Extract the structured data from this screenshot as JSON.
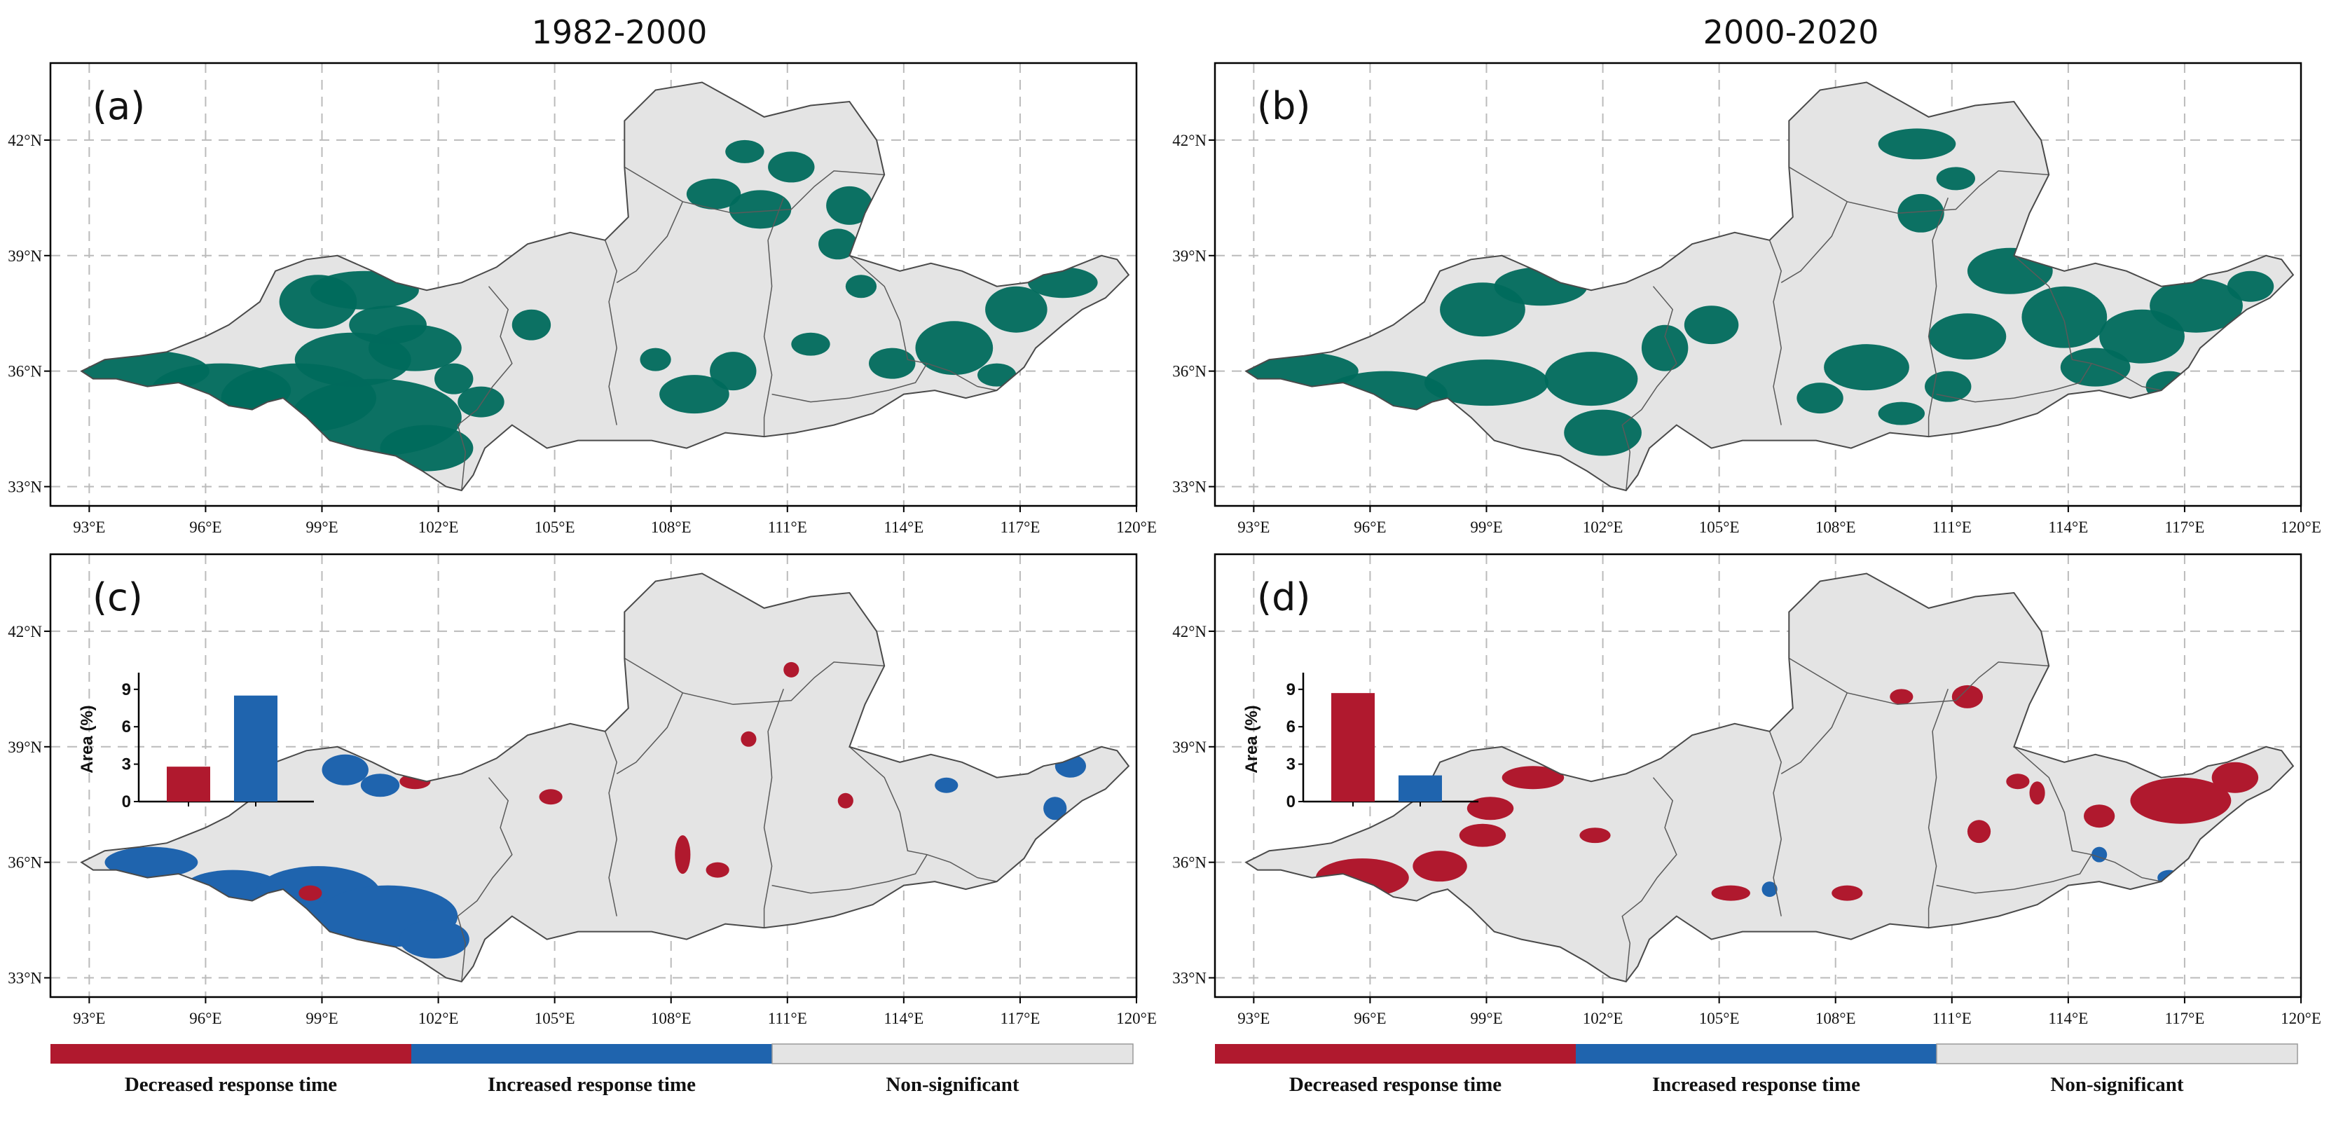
{
  "columns": [
    {
      "title": "1982-2000"
    },
    {
      "title": "2000-2020"
    }
  ],
  "panels": [
    {
      "id": "a",
      "label": "(a)",
      "kind": "significance",
      "period": "1982-2000"
    },
    {
      "id": "b",
      "label": "(b)",
      "kind": "significance",
      "period": "2000-2020"
    },
    {
      "id": "c",
      "label": "(c)",
      "kind": "trend",
      "period": "1982-2000",
      "inset": {
        "ylabel": "Area (%)",
        "yticks": [
          "0",
          "3",
          "6",
          "9"
        ],
        "ylim": [
          0,
          10
        ],
        "bars": [
          {
            "category": "Decreased response time",
            "value": 2.8
          },
          {
            "category": "Increased response time",
            "value": 8.5
          }
        ]
      }
    },
    {
      "id": "d",
      "label": "(d)",
      "kind": "trend",
      "period": "2000-2020",
      "inset": {
        "ylabel": "Area (%)",
        "yticks": [
          "0",
          "3",
          "6",
          "9"
        ],
        "ylim": [
          0,
          10
        ],
        "bars": [
          {
            "category": "Decreased response time",
            "value": 8.7
          },
          {
            "category": "Increased response time",
            "value": 2.1
          }
        ]
      }
    }
  ],
  "axes": {
    "lon_range": [
      92,
      120
    ],
    "lat_range": [
      32.5,
      44
    ],
    "lon_ticks": [
      {
        "value": 93,
        "label": "93°E"
      },
      {
        "value": 96,
        "label": "96°E"
      },
      {
        "value": 99,
        "label": "99°E"
      },
      {
        "value": 102,
        "label": "102°E"
      },
      {
        "value": 105,
        "label": "105°E"
      },
      {
        "value": 108,
        "label": "108°E"
      },
      {
        "value": 111,
        "label": "111°E"
      },
      {
        "value": 114,
        "label": "114°E"
      },
      {
        "value": 117,
        "label": "117°E"
      },
      {
        "value": 120,
        "label": "120°E"
      }
    ],
    "lat_ticks": [
      {
        "value": 33,
        "label": "33°N"
      },
      {
        "value": 36,
        "label": "36°N"
      },
      {
        "value": 39,
        "label": "39°N"
      },
      {
        "value": 42,
        "label": "42°N"
      }
    ]
  },
  "legend": [
    {
      "label": "Decreased response time",
      "color": "#B0192E"
    },
    {
      "label": "Increased response time",
      "color": "#1F64AE"
    },
    {
      "label": "Non-significant",
      "color": "#E4E4E4"
    }
  ],
  "colors": {
    "region_fill": "#E4E4E4",
    "significant": "#006A5C",
    "decreased": "#B0192E",
    "increased": "#1F64AE",
    "grid": "#BBBBBB",
    "border": "#4A4A4A"
  },
  "region_outline": [
    [
      92.8,
      36.0
    ],
    [
      93.4,
      36.3
    ],
    [
      94.3,
      36.4
    ],
    [
      95.0,
      36.5
    ],
    [
      96.0,
      36.9
    ],
    [
      96.6,
      37.2
    ],
    [
      97.4,
      37.8
    ],
    [
      97.8,
      38.6
    ],
    [
      98.6,
      38.9
    ],
    [
      99.4,
      39.0
    ],
    [
      100.3,
      38.6
    ],
    [
      100.9,
      38.3
    ],
    [
      101.7,
      38.1
    ],
    [
      102.6,
      38.3
    ],
    [
      103.5,
      38.7
    ],
    [
      104.3,
      39.3
    ],
    [
      105.4,
      39.6
    ],
    [
      106.3,
      39.4
    ],
    [
      106.9,
      40.0
    ],
    [
      106.8,
      41.3
    ],
    [
      106.8,
      42.5
    ],
    [
      107.6,
      43.3
    ],
    [
      108.8,
      43.5
    ],
    [
      109.7,
      43.0
    ],
    [
      110.4,
      42.6
    ],
    [
      111.6,
      42.9
    ],
    [
      112.6,
      43.0
    ],
    [
      113.3,
      42.0
    ],
    [
      113.5,
      41.1
    ],
    [
      113.0,
      40.1
    ],
    [
      112.6,
      39.0
    ],
    [
      113.9,
      38.6
    ],
    [
      114.7,
      38.8
    ],
    [
      115.5,
      38.6
    ],
    [
      116.4,
      38.2
    ],
    [
      117.2,
      38.3
    ],
    [
      117.6,
      38.5
    ],
    [
      118.1,
      38.6
    ],
    [
      118.6,
      38.8
    ],
    [
      119.1,
      39.0
    ],
    [
      119.5,
      38.9
    ],
    [
      119.8,
      38.5
    ],
    [
      119.2,
      37.9
    ],
    [
      118.6,
      37.6
    ],
    [
      118.1,
      37.2
    ],
    [
      117.4,
      36.6
    ],
    [
      117.1,
      36.1
    ],
    [
      116.4,
      35.5
    ],
    [
      115.6,
      35.3
    ],
    [
      114.8,
      35.5
    ],
    [
      114.0,
      35.4
    ],
    [
      113.2,
      34.9
    ],
    [
      112.2,
      34.6
    ],
    [
      111.2,
      34.4
    ],
    [
      110.4,
      34.3
    ],
    [
      109.4,
      34.4
    ],
    [
      108.4,
      34.0
    ],
    [
      107.5,
      34.2
    ],
    [
      106.6,
      34.2
    ],
    [
      105.6,
      34.2
    ],
    [
      104.8,
      34.0
    ],
    [
      103.9,
      34.6
    ],
    [
      103.2,
      34.0
    ],
    [
      102.9,
      33.3
    ],
    [
      102.6,
      32.9
    ],
    [
      102.2,
      33.0
    ],
    [
      101.6,
      33.4
    ],
    [
      100.9,
      33.8
    ],
    [
      99.9,
      34.0
    ],
    [
      99.2,
      34.2
    ],
    [
      98.6,
      34.8
    ],
    [
      98.0,
      35.3
    ],
    [
      97.6,
      35.2
    ],
    [
      97.2,
      35.0
    ],
    [
      96.6,
      35.1
    ],
    [
      96.1,
      35.4
    ],
    [
      95.3,
      35.7
    ],
    [
      94.5,
      35.6
    ],
    [
      93.7,
      35.8
    ],
    [
      93.1,
      35.8
    ],
    [
      92.8,
      36.0
    ]
  ],
  "province_borders": [
    [
      [
        103.3,
        38.2
      ],
      [
        103.8,
        37.6
      ],
      [
        103.6,
        36.9
      ],
      [
        103.9,
        36.2
      ],
      [
        103.4,
        35.6
      ],
      [
        103.0,
        35.0
      ],
      [
        102.5,
        34.6
      ],
      [
        102.7,
        33.9
      ],
      [
        102.6,
        32.9
      ]
    ],
    [
      [
        106.3,
        39.4
      ],
      [
        106.6,
        38.6
      ],
      [
        106.4,
        37.8
      ],
      [
        106.6,
        36.6
      ],
      [
        106.4,
        35.6
      ],
      [
        106.6,
        34.6
      ]
    ],
    [
      [
        106.8,
        41.3
      ],
      [
        108.3,
        40.4
      ],
      [
        109.6,
        40.1
      ],
      [
        111.1,
        40.2
      ],
      [
        111.7,
        40.8
      ],
      [
        112.2,
        41.2
      ],
      [
        113.5,
        41.1
      ]
    ],
    [
      [
        108.3,
        40.4
      ],
      [
        107.9,
        39.5
      ],
      [
        107.1,
        38.6
      ],
      [
        106.6,
        38.3
      ]
    ],
    [
      [
        110.9,
        40.5
      ],
      [
        110.5,
        39.4
      ],
      [
        110.6,
        38.2
      ],
      [
        110.4,
        36.9
      ],
      [
        110.6,
        35.9
      ],
      [
        110.4,
        34.8
      ],
      [
        110.4,
        34.3
      ]
    ],
    [
      [
        110.6,
        35.4
      ],
      [
        111.6,
        35.2
      ],
      [
        112.6,
        35.3
      ],
      [
        113.6,
        35.5
      ],
      [
        114.3,
        35.7
      ],
      [
        114.6,
        36.2
      ]
    ],
    [
      [
        112.6,
        39.0
      ],
      [
        113.5,
        38.2
      ],
      [
        113.9,
        37.3
      ],
      [
        114.1,
        36.3
      ],
      [
        114.6,
        36.2
      ],
      [
        115.2,
        36.0
      ],
      [
        115.9,
        35.6
      ],
      [
        116.4,
        35.5
      ]
    ],
    [
      [
        114.0,
        35.4
      ],
      [
        113.6,
        34.8
      ],
      [
        113.9,
        34.4
      ]
    ]
  ],
  "patches": {
    "a": [
      [
        94.3,
        36.0,
        1.8,
        0.55
      ],
      [
        96.4,
        35.5,
        1.8,
        0.7
      ],
      [
        98.4,
        35.3,
        2.0,
        0.9
      ],
      [
        100.4,
        34.8,
        2.2,
        1.0
      ],
      [
        101.7,
        34.0,
        1.2,
        0.6
      ],
      [
        99.8,
        36.3,
        1.5,
        0.7
      ],
      [
        101.4,
        36.6,
        1.2,
        0.6
      ],
      [
        98.9,
        37.8,
        1.0,
        0.7
      ],
      [
        100.1,
        38.1,
        1.4,
        0.5
      ],
      [
        100.7,
        37.2,
        1.0,
        0.5
      ],
      [
        103.1,
        35.2,
        0.6,
        0.4
      ],
      [
        102.4,
        35.8,
        0.5,
        0.4
      ],
      [
        104.4,
        37.2,
        0.5,
        0.4
      ],
      [
        108.6,
        35.4,
        0.9,
        0.5
      ],
      [
        109.6,
        36.0,
        0.6,
        0.5
      ],
      [
        107.6,
        36.3,
        0.4,
        0.3
      ],
      [
        109.1,
        40.6,
        0.7,
        0.4
      ],
      [
        110.3,
        40.2,
        0.8,
        0.5
      ],
      [
        111.1,
        41.3,
        0.6,
        0.4
      ],
      [
        109.9,
        41.7,
        0.5,
        0.3
      ],
      [
        112.6,
        40.3,
        0.6,
        0.5
      ],
      [
        112.3,
        39.3,
        0.5,
        0.4
      ],
      [
        111.6,
        36.7,
        0.5,
        0.3
      ],
      [
        112.9,
        38.2,
        0.4,
        0.3
      ],
      [
        113.7,
        36.2,
        0.6,
        0.4
      ],
      [
        115.3,
        36.6,
        1.0,
        0.7
      ],
      [
        116.9,
        37.6,
        0.8,
        0.6
      ],
      [
        118.1,
        38.3,
        0.9,
        0.4
      ],
      [
        116.4,
        35.9,
        0.5,
        0.3
      ]
    ],
    "b": [
      [
        94.1,
        36.0,
        1.6,
        0.5
      ],
      [
        96.4,
        35.4,
        1.6,
        0.6
      ],
      [
        99.0,
        35.7,
        1.6,
        0.6
      ],
      [
        101.7,
        35.8,
        1.2,
        0.7
      ],
      [
        98.9,
        37.6,
        1.1,
        0.7
      ],
      [
        100.4,
        38.2,
        1.2,
        0.5
      ],
      [
        103.6,
        36.6,
        0.6,
        0.6
      ],
      [
        104.8,
        37.2,
        0.7,
        0.5
      ],
      [
        102.0,
        34.4,
        1.0,
        0.6
      ],
      [
        108.8,
        36.1,
        1.1,
        0.6
      ],
      [
        110.2,
        40.1,
        0.6,
        0.5
      ],
      [
        110.1,
        41.9,
        1.0,
        0.4
      ],
      [
        111.1,
        41.0,
        0.5,
        0.3
      ],
      [
        112.5,
        38.6,
        1.1,
        0.6
      ],
      [
        111.4,
        36.9,
        1.0,
        0.6
      ],
      [
        113.9,
        37.4,
        1.1,
        0.8
      ],
      [
        114.7,
        36.1,
        0.9,
        0.5
      ],
      [
        115.9,
        36.9,
        1.1,
        0.7
      ],
      [
        117.3,
        37.7,
        1.2,
        0.7
      ],
      [
        118.7,
        38.2,
        0.6,
        0.4
      ],
      [
        116.6,
        35.6,
        0.6,
        0.4
      ],
      [
        110.9,
        35.6,
        0.6,
        0.4
      ],
      [
        107.6,
        35.3,
        0.6,
        0.4
      ],
      [
        109.7,
        34.9,
        0.6,
        0.3
      ]
    ],
    "c_dec": [
      [
        101.4,
        38.1,
        0.4,
        0.2
      ],
      [
        104.9,
        37.7,
        0.3,
        0.2
      ],
      [
        108.3,
        36.2,
        0.2,
        0.5
      ],
      [
        109.2,
        35.8,
        0.3,
        0.2
      ],
      [
        110.0,
        39.2,
        0.2,
        0.2
      ],
      [
        112.5,
        37.6,
        0.2,
        0.2
      ],
      [
        111.1,
        41.0,
        0.2,
        0.2
      ],
      [
        98.7,
        35.2,
        0.3,
        0.2
      ]
    ],
    "c_inc": [
      [
        94.6,
        36.0,
        1.2,
        0.4
      ],
      [
        96.7,
        35.3,
        1.3,
        0.5
      ],
      [
        98.9,
        35.2,
        1.6,
        0.7
      ],
      [
        100.7,
        34.6,
        1.8,
        0.8
      ],
      [
        101.9,
        34.0,
        0.9,
        0.5
      ],
      [
        99.6,
        38.4,
        0.6,
        0.4
      ],
      [
        100.5,
        38.0,
        0.5,
        0.3
      ],
      [
        113.3,
        39.3,
        0.3,
        0.2
      ],
      [
        118.3,
        38.5,
        0.4,
        0.3
      ],
      [
        117.9,
        37.4,
        0.3,
        0.3
      ],
      [
        115.1,
        38.0,
        0.3,
        0.2
      ]
    ],
    "d_dec": [
      [
        95.8,
        35.6,
        1.2,
        0.5
      ],
      [
        97.8,
        35.9,
        0.7,
        0.4
      ],
      [
        98.9,
        36.7,
        0.6,
        0.3
      ],
      [
        100.2,
        38.2,
        0.8,
        0.3
      ],
      [
        99.1,
        37.4,
        0.6,
        0.3
      ],
      [
        101.8,
        36.7,
        0.4,
        0.2
      ],
      [
        105.3,
        35.2,
        0.5,
        0.2
      ],
      [
        108.3,
        35.2,
        0.4,
        0.2
      ],
      [
        111.7,
        36.8,
        0.3,
        0.3
      ],
      [
        112.7,
        38.1,
        0.3,
        0.2
      ],
      [
        111.4,
        40.3,
        0.4,
        0.3
      ],
      [
        109.7,
        40.3,
        0.3,
        0.2
      ],
      [
        114.8,
        37.2,
        0.4,
        0.3
      ],
      [
        116.9,
        37.6,
        1.3,
        0.6
      ],
      [
        118.3,
        38.2,
        0.6,
        0.4
      ],
      [
        113.2,
        37.8,
        0.2,
        0.3
      ]
    ],
    "d_inc": [
      [
        106.3,
        35.3,
        0.2,
        0.2
      ],
      [
        114.8,
        36.2,
        0.2,
        0.2
      ],
      [
        116.6,
        35.6,
        0.3,
        0.2
      ],
      [
        101.5,
        38.7,
        0.2,
        0.1
      ]
    ]
  }
}
